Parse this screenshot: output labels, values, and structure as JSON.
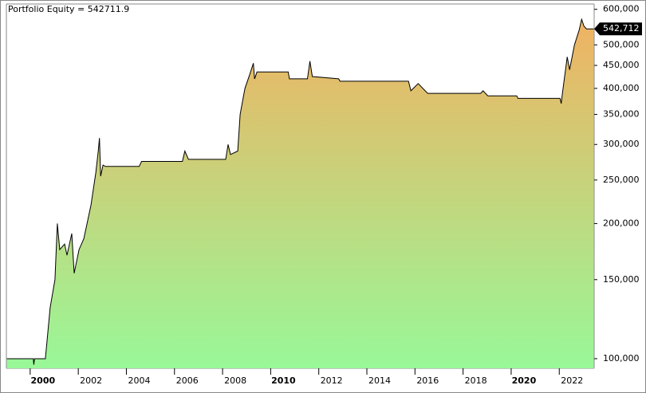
{
  "chart_data": {
    "type": "area",
    "title": "Portfolio Equity = 542711.9",
    "log_scale": true,
    "series": [
      {
        "name": "Portfolio Equity",
        "color": "#000000",
        "x": [
          1998.5,
          1999.6,
          1999.62,
          1999.65,
          2000.1,
          2000.3,
          2000.5,
          2000.6,
          2000.7,
          2000.9,
          2001.0,
          2001.2,
          2001.3,
          2001.5,
          2001.7,
          2002.0,
          2002.2,
          2002.3,
          2002.35,
          2002.4,
          2002.5,
          2002.6,
          2004.0,
          2004.1,
          2005.8,
          2005.9,
          2006.05,
          2007.6,
          2007.7,
          2007.8,
          2008.1,
          2008.2,
          2008.4,
          2008.6,
          2008.75,
          2008.8,
          2008.9,
          2010.2,
          2010.25,
          2011.0,
          2011.1,
          2011.2,
          2012.3,
          2012.35,
          2015.2,
          2015.3,
          2015.6,
          2016.0,
          2018.2,
          2018.3,
          2018.5,
          2019.7,
          2019.75,
          2021.5,
          2021.55,
          2021.6,
          2021.8,
          2021.9,
          2022.1,
          2022.3,
          2022.4,
          2022.5,
          2022.6,
          2022.9
        ],
        "values": [
          100000,
          100000,
          97000,
          100000,
          100000,
          130000,
          150000,
          200000,
          175000,
          180000,
          170000,
          190000,
          155000,
          175000,
          185000,
          220000,
          260000,
          290000,
          310000,
          255000,
          270000,
          268000,
          268000,
          275000,
          275000,
          290000,
          278000,
          278000,
          300000,
          285000,
          290000,
          350000,
          400000,
          430000,
          455000,
          420000,
          435000,
          435000,
          420000,
          420000,
          460000,
          425000,
          420000,
          415000,
          415000,
          395000,
          410000,
          390000,
          390000,
          395000,
          385000,
          385000,
          380000,
          380000,
          370000,
          390000,
          470000,
          440000,
          500000,
          540000,
          570000,
          550000,
          542711.9,
          542711.9
        ]
      }
    ],
    "last_label": {
      "value": 542711.9,
      "label": "542,712"
    },
    "xlim": [
      1998.48,
      2022.92
    ],
    "xticks": [
      2000,
      2002,
      2004,
      2006,
      2008,
      2010,
      2012,
      2014,
      2016,
      2018,
      2020,
      2022
    ],
    "ylim": [
      95200,
      616600
    ],
    "yticks": [
      {
        "value": 100000,
        "label": "100,000"
      },
      {
        "value": 150000,
        "label": "150,000"
      },
      {
        "value": 200000,
        "label": "200,000"
      },
      {
        "value": 250000,
        "label": "250,000"
      },
      {
        "value": 300000,
        "label": "300,000"
      },
      {
        "value": 350000,
        "label": "350,000"
      },
      {
        "value": 400000,
        "label": "400,000"
      },
      {
        "value": 450000,
        "label": "450,000"
      },
      {
        "value": 500000,
        "label": "500,000"
      },
      {
        "value": 600000,
        "label": "600,000"
      }
    ],
    "gradient": [
      "#f0b262",
      "#98f898"
    ]
  }
}
